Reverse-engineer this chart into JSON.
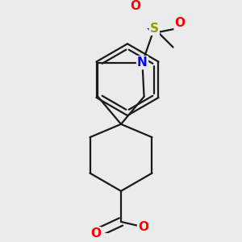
{
  "bg_color": "#ebebeb",
  "bond_color": "#1a1a1a",
  "bond_width": 1.6,
  "N_color": "#0000FF",
  "O_color": "#FF0000",
  "S_color": "#999900",
  "figsize": [
    3.0,
    3.0
  ],
  "dpi": 100,
  "xlim": [
    -2.5,
    2.5
  ],
  "ylim": [
    -3.2,
    2.8
  ]
}
